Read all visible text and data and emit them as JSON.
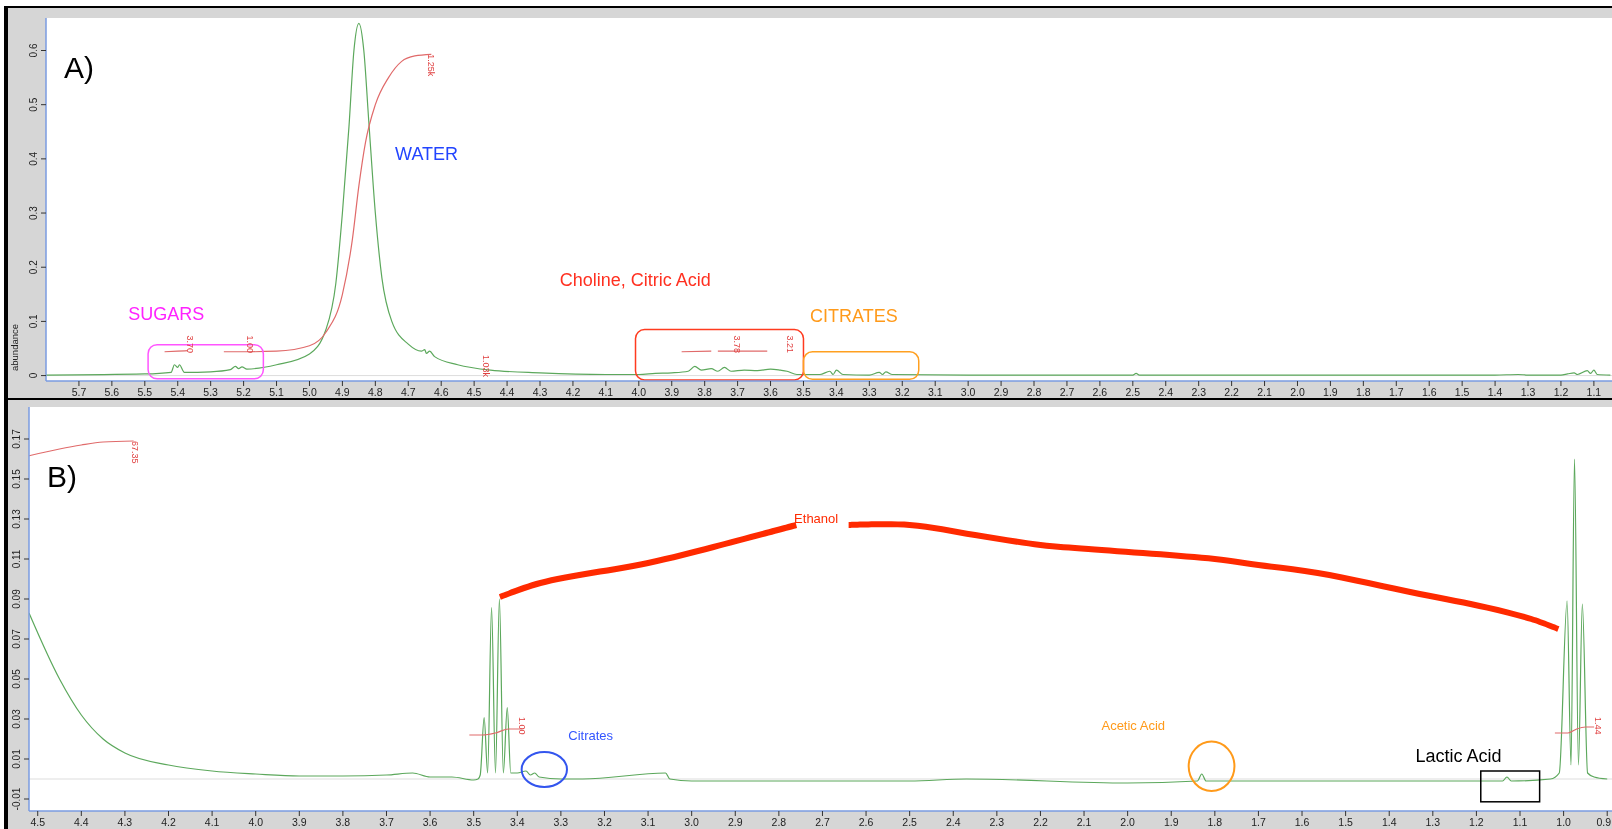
{
  "chart_data": [
    {
      "type": "line",
      "ylabel": "abundance",
      "xlim": [
        5.8,
        1.045
      ],
      "ylim": [
        -0.01,
        0.66
      ],
      "xticks": [
        5.7,
        5.6,
        5.5,
        5.4,
        5.3,
        5.2,
        5.1,
        {
          "value": 5,
          "label": "5.0"
        },
        4.9,
        4.8,
        4.7,
        4.6,
        4.5,
        4.4,
        4.3,
        4.2,
        4.1,
        {
          "value": 4,
          "label": "4.0"
        },
        3.9,
        3.8,
        3.7,
        3.6,
        3.5,
        3.4,
        3.3,
        3.2,
        3.1,
        {
          "value": 3,
          "label": "3.0"
        },
        2.9,
        2.8,
        2.7,
        2.6,
        2.5,
        2.4,
        2.3,
        2.2,
        2.1,
        {
          "value": 2,
          "label": "2.0"
        },
        1.9,
        1.8,
        1.7,
        1.6,
        1.5,
        1.4,
        1.3,
        1.2,
        1.1
      ],
      "yticks": [
        0,
        0.1,
        0.2,
        0.3,
        0.4,
        0.5,
        0.6
      ],
      "ref_lines": [
        {
          "axis": "y",
          "value": 0,
          "color": "#dddddd"
        }
      ],
      "series": [
        {
          "color": "#5ca85c",
          "x": [
            5.8,
            5.5,
            5.42,
            5.41,
            5.4,
            5.395,
            5.38,
            5.3,
            5.24,
            5.225,
            5.215,
            5.205,
            5.19,
            5.1,
            5.0,
            4.95,
            4.92,
            4.9,
            4.88,
            4.865,
            4.85,
            4.835,
            4.82,
            4.8,
            4.78,
            4.75,
            4.7,
            4.66,
            4.65,
            4.645,
            4.635,
            4.62,
            4.55,
            4.45,
            4.3,
            4.1,
            4.0,
            3.95,
            3.9,
            3.85,
            3.83,
            3.81,
            3.78,
            3.76,
            3.74,
            3.72,
            3.68,
            3.64,
            3.6,
            3.57,
            3.55,
            3.52,
            3.45,
            3.42,
            3.41,
            3.4,
            3.38,
            3.3,
            3.27,
            3.26,
            3.25,
            3.23,
            3.0,
            2.5,
            2.49,
            2.48,
            1.4,
            1.33,
            1.3,
            1.2,
            1.18,
            1.16,
            1.15,
            1.12,
            1.11,
            1.1,
            1.09,
            1.05
          ],
          "values": [
            0.001,
            0.003,
            0.006,
            0.02,
            0.015,
            0.02,
            0.006,
            0.007,
            0.011,
            0.017,
            0.013,
            0.016,
            0.012,
            0.02,
            0.04,
            0.085,
            0.17,
            0.3,
            0.46,
            0.6,
            0.65,
            0.6,
            0.47,
            0.3,
            0.18,
            0.1,
            0.058,
            0.045,
            0.048,
            0.041,
            0.045,
            0.035,
            0.02,
            0.01,
            0.005,
            0.002,
            0.002,
            0.004,
            0.005,
            0.008,
            0.017,
            0.01,
            0.013,
            0.008,
            0.015,
            0.008,
            0.01,
            0.009,
            0.012,
            0.01,
            0.008,
            0.002,
            0.002,
            0.008,
            0.002,
            0.01,
            0.002,
            0.001,
            0.006,
            0.002,
            0.007,
            0.002,
            0.001,
            0.001,
            0.004,
            0.001,
            0.001,
            0.002,
            0.001,
            0.001,
            0.003,
            0.005,
            0.002,
            0.009,
            0.004,
            0.01,
            0.002,
            0.001
          ]
        },
        {
          "color": "#e06a6a",
          "x": [
            5.44,
            5.4,
            5.37
          ],
          "values": [
            0.044,
            0.045,
            0.046
          ]
        },
        {
          "color": "#e06a6a",
          "x": [
            5.26,
            5.18,
            5.1,
            5.0,
            4.95,
            4.9,
            4.87,
            4.85,
            4.83,
            4.8,
            4.76,
            4.72,
            4.68,
            4.63
          ],
          "values": [
            0.044,
            0.044,
            0.045,
            0.055,
            0.08,
            0.15,
            0.25,
            0.35,
            0.43,
            0.5,
            0.55,
            0.58,
            0.59,
            0.593
          ]
        },
        {
          "color": "#e06a6a",
          "x": [
            3.87,
            3.78
          ],
          "values": [
            0.044,
            0.045
          ]
        },
        {
          "color": "#e06a6a",
          "x": [
            3.76,
            3.61
          ],
          "values": [
            0.045,
            0.045
          ]
        }
      ],
      "annotations": [
        "A)",
        "SUGARS",
        "WATER",
        "Choline, Citric Acid",
        "CITRATES",
        "3.70",
        "1.00",
        "1.25k",
        "1.03k",
        "3.78",
        "3.21"
      ]
    },
    {
      "type": "line",
      "xlim": [
        4.52,
        0.889
      ],
      "ylim": [
        -0.016,
        0.186
      ],
      "xticks": [
        4.5,
        4.4,
        4.3,
        4.2,
        4.1,
        {
          "value": 4,
          "label": "4.0"
        },
        3.9,
        3.8,
        3.7,
        3.6,
        3.5,
        3.4,
        3.3,
        3.2,
        3.1,
        {
          "value": 3,
          "label": "3.0"
        },
        2.9,
        2.8,
        2.7,
        2.6,
        2.5,
        2.4,
        2.3,
        2.2,
        2.1,
        {
          "value": 2,
          "label": "2.0"
        },
        1.9,
        1.8,
        1.7,
        1.6,
        1.5,
        1.4,
        1.3,
        1.2,
        1.1,
        {
          "value": 1,
          "label": "1.0"
        },
        0.9
      ],
      "yticks": [
        -0.01,
        0.01,
        0.03,
        0.05,
        0.07,
        0.09,
        0.11,
        0.13,
        0.15,
        0.17
      ],
      "ref_lines": [
        {
          "axis": "y",
          "value": 0,
          "color": "#dddddd"
        }
      ],
      "series": [
        {
          "color": "#5ca85c",
          "x": [
            4.52,
            4.45,
            4.4,
            4.35,
            4.3,
            4.2,
            4.1,
            4.0,
            3.9,
            3.8,
            3.7,
            3.64,
            3.6,
            3.55,
            3.5,
            3.49,
            3.485,
            3.476,
            3.468,
            3.459,
            3.45,
            3.441,
            3.432,
            3.423,
            3.415,
            3.4,
            3.38,
            3.37,
            3.36,
            3.35,
            3.3,
            3.25,
            3.06,
            3.05,
            3.0,
            2.5,
            2.37,
            2.0,
            1.84,
            1.83,
            1.82,
            1.5,
            1.14,
            1.13,
            1.12,
            1.03,
            1.01,
            0.992,
            0.983,
            0.975,
            0.966,
            0.957,
            0.945,
            0.93,
            0.9
          ],
          "values": [
            0.083,
            0.05,
            0.032,
            0.02,
            0.013,
            0.007,
            0.004,
            0.0025,
            0.0015,
            0.0015,
            0.002,
            0.003,
            0.001,
            0.001,
            -0.0005,
            0.0,
            0.002,
            0.0307,
            0.003,
            0.0857,
            0.003,
            0.09,
            0.003,
            0.0357,
            0.003,
            0.003,
            0.004,
            0.002,
            0.003,
            0.001,
            0.0,
            0.0,
            0.003,
            0.0,
            -0.001,
            -0.001,
            0.0,
            -0.002,
            -0.001,
            0.0025,
            -0.001,
            -0.001,
            -0.001,
            0.001,
            -0.001,
            0.0,
            0.003,
            0.089,
            0.007,
            0.16,
            0.007,
            0.0875,
            0.003,
            0.001,
            0.0
          ]
        },
        {
          "color": "#e06a6a",
          "x": [
            4.52,
            4.45,
            4.4,
            4.35,
            4.28
          ],
          "values": [
            0.1616,
            0.165,
            0.167,
            0.1685,
            0.169
          ]
        },
        {
          "color": "#e06a6a",
          "x": [
            3.51,
            3.48,
            3.45,
            3.42,
            3.39
          ],
          "values": [
            0.022,
            0.022,
            0.023,
            0.025,
            0.025
          ]
        },
        {
          "color": "#e06a6a",
          "x": [
            1.02,
            0.99,
            0.97,
            0.95,
            0.93
          ],
          "values": [
            0.023,
            0.023,
            0.025,
            0.026,
            0.026
          ]
        }
      ],
      "annotations": [
        "B)",
        "67.35",
        "1.00",
        "1.44",
        "Ethanol",
        "Citrates",
        "Acetic Acid",
        "Lactic Acid"
      ]
    }
  ]
}
